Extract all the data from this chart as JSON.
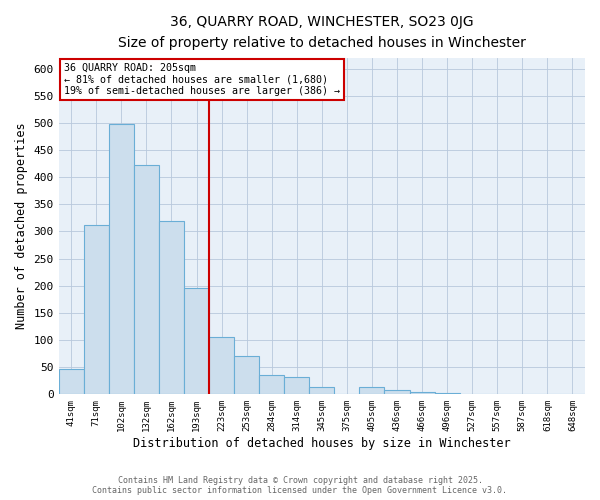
{
  "title": "36, QUARRY ROAD, WINCHESTER, SO23 0JG",
  "subtitle": "Size of property relative to detached houses in Winchester",
  "xlabel": "Distribution of detached houses by size in Winchester",
  "ylabel": "Number of detached properties",
  "categories": [
    "41sqm",
    "71sqm",
    "102sqm",
    "132sqm",
    "162sqm",
    "193sqm",
    "223sqm",
    "253sqm",
    "284sqm",
    "314sqm",
    "345sqm",
    "375sqm",
    "405sqm",
    "436sqm",
    "466sqm",
    "496sqm",
    "527sqm",
    "557sqm",
    "587sqm",
    "618sqm",
    "648sqm"
  ],
  "values": [
    47,
    312,
    497,
    423,
    320,
    195,
    105,
    70,
    35,
    32,
    14,
    0,
    14,
    8,
    4,
    2,
    1,
    1,
    0,
    0,
    1
  ],
  "bar_color_fill": "#ccdeed",
  "bar_color_edge": "#6aaed6",
  "vline_x_index": 5.5,
  "vline_color": "#cc0000",
  "annotation_title": "36 QUARRY ROAD: 205sqm",
  "annotation_line1": "← 81% of detached houses are smaller (1,680)",
  "annotation_line2": "19% of semi-detached houses are larger (386) →",
  "annotation_box_color": "#cc0000",
  "annotation_box_fill": "#ffffff",
  "ylim": [
    0,
    620
  ],
  "yticks": [
    0,
    50,
    100,
    150,
    200,
    250,
    300,
    350,
    400,
    450,
    500,
    550,
    600
  ],
  "bg_color": "#e8eef8",
  "plot_bg_color": "#e8f0f8",
  "footer1": "Contains HM Land Registry data © Crown copyright and database right 2025.",
  "footer2": "Contains public sector information licensed under the Open Government Licence v3.0.",
  "figsize": [
    6.0,
    5.0
  ],
  "dpi": 100
}
